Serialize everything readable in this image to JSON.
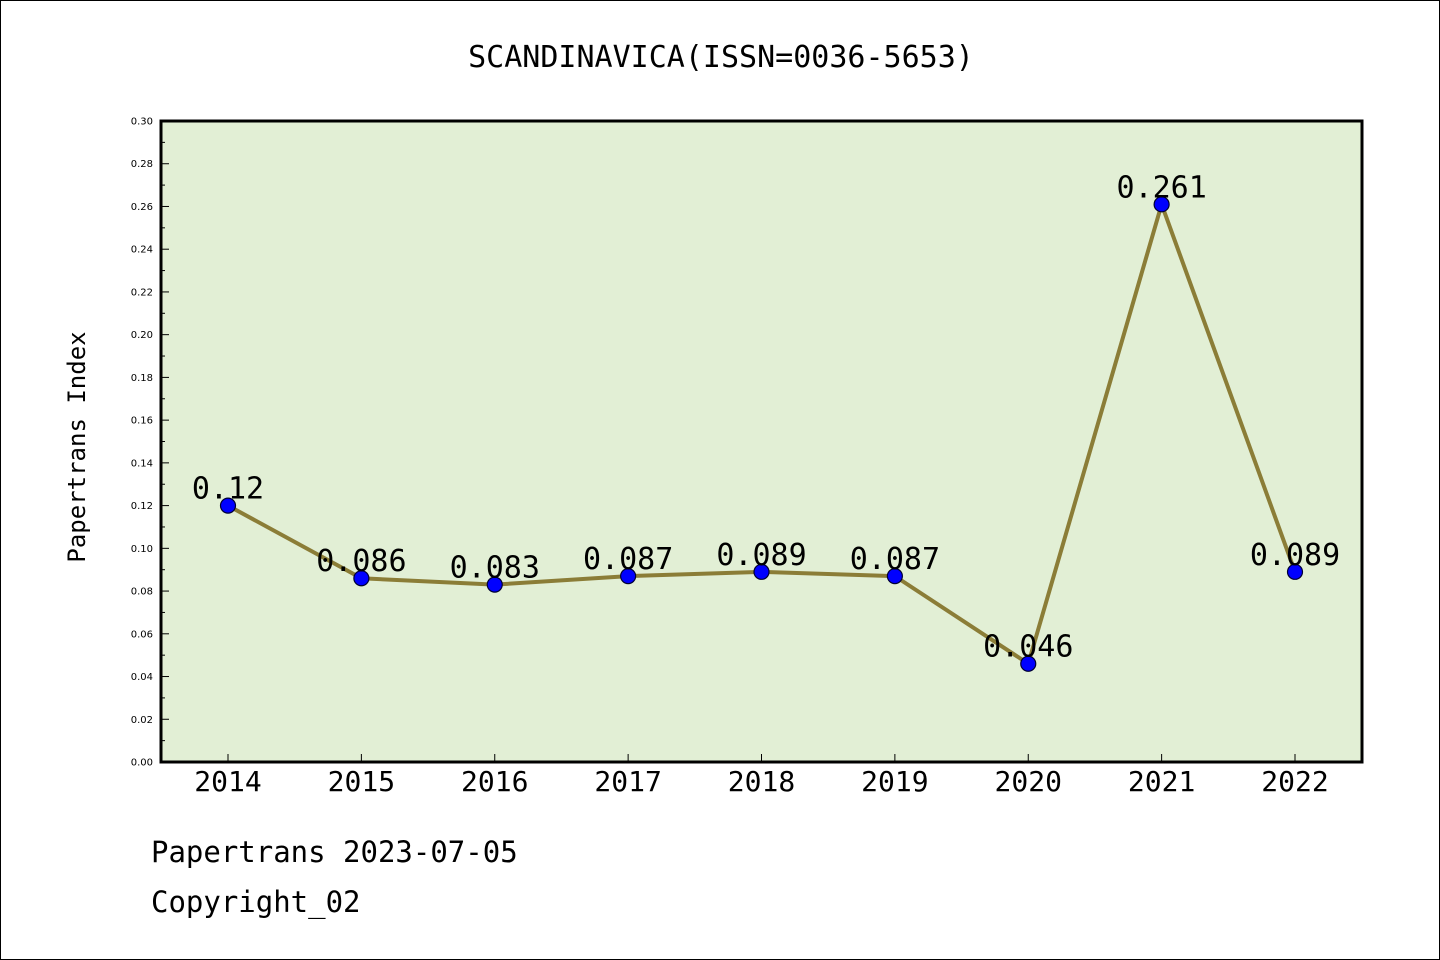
{
  "footer": {
    "source_line": "Papertrans 2023-07-05",
    "copyright_line": "Copyright_02"
  },
  "colors": {
    "plot_background": "#e2efd5",
    "line": "#8b7d37",
    "marker_fill": "#0000ff",
    "marker_edge": "#000033",
    "frame": "#000000"
  },
  "chart_data": {
    "type": "line",
    "title": "SCANDINAVICA(ISSN=0036-5653)",
    "xlabel": "",
    "ylabel": "Papertrans Index",
    "categories": [
      "2014",
      "2015",
      "2016",
      "2017",
      "2018",
      "2019",
      "2020",
      "2021",
      "2022"
    ],
    "series": [
      {
        "values": [
          0.12,
          0.086,
          0.083,
          0.087,
          0.089,
          0.087,
          0.046,
          0.261,
          0.089
        ],
        "labels": [
          "0.12",
          "0.086",
          "0.083",
          "0.087",
          "0.089",
          "0.087",
          "0.046",
          "0.261",
          "0.089"
        ]
      }
    ],
    "ylim": [
      0,
      0.3
    ],
    "yticks": [
      "0.00",
      "0.02",
      "0.04",
      "0.06",
      "0.08",
      "0.10",
      "0.12",
      "0.14",
      "0.16",
      "0.18",
      "0.20",
      "0.22",
      "0.24",
      "0.26",
      "0.28",
      "0.30"
    ],
    "grid": false,
    "legend": "none",
    "markers": true
  }
}
